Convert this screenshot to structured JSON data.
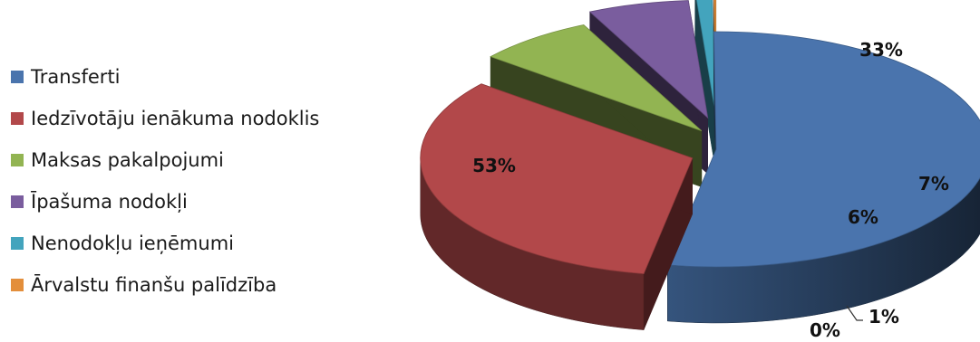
{
  "chart_data": {
    "type": "pie",
    "title": "",
    "legend_position": "left",
    "categories": [
      "Transferti",
      "Iedzīvotāju ienākuma nodoklis",
      "Maksas pakalpojumi",
      "Īpašuma nodokļi",
      "Nenodokļu ieņēmumi",
      "Ārvalstu finanšu palīdzība"
    ],
    "values": [
      53,
      33,
      7,
      6,
      1,
      0
    ],
    "data_labels": [
      "53%",
      "33%",
      "7%",
      "6%",
      "1%",
      "0%"
    ],
    "colors": [
      "#4a74ad",
      "#b2484a",
      "#92b452",
      "#7a5d9e",
      "#43a4bd",
      "#e38e3b"
    ],
    "style": "3d-exploded"
  }
}
